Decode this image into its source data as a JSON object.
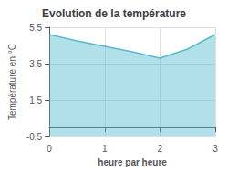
{
  "chart_data": {
    "type": "area",
    "title": "Evolution de la température",
    "xlabel": "heure par heure",
    "ylabel": "Température en °C",
    "x": [
      0,
      0.5,
      1,
      1.5,
      2,
      2.5,
      3
    ],
    "values": [
      5.1,
      4.75,
      4.45,
      4.15,
      3.8,
      4.3,
      5.1
    ],
    "color": "#55bbcc",
    "xlim": [
      0,
      3
    ],
    "xticks": [
      0,
      1,
      2,
      3
    ],
    "ylim": [
      -0.5,
      5.5
    ],
    "yticks": [
      -0.5,
      1.5,
      3.5,
      5.5
    ],
    "grid": true
  }
}
